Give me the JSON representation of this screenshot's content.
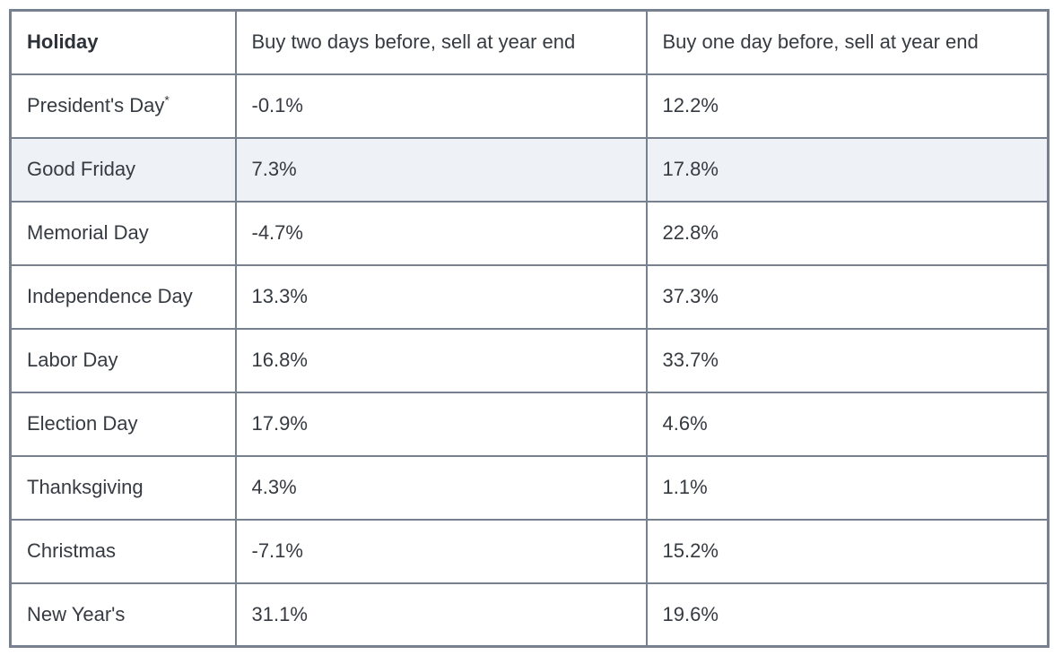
{
  "page": {
    "background": "#ffffff"
  },
  "colors": {
    "border": "#76808e",
    "highlight_row_background": "#eef2f6",
    "body_text": "#363a41",
    "header_text": "#2d3138"
  },
  "table": {
    "headers": {
      "holiday": "Holiday",
      "two_days": "Buy two days before, sell at year end",
      "one_day": "Buy one day before, sell at year end"
    },
    "rows": [
      {
        "holiday": "President's Day",
        "marker": "*",
        "two_days": "-0.1%",
        "one_day": "12.2%",
        "highlighted": false
      },
      {
        "holiday": "Good Friday",
        "marker": "",
        "two_days": "7.3%",
        "one_day": "17.8%",
        "highlighted": true
      },
      {
        "holiday": "Memorial Day",
        "marker": "",
        "two_days": "-4.7%",
        "one_day": "22.8%",
        "highlighted": false
      },
      {
        "holiday": "Independence Day",
        "marker": "",
        "two_days": "13.3%",
        "one_day": "37.3%",
        "highlighted": false
      },
      {
        "holiday": "Labor Day",
        "marker": "",
        "two_days": "16.8%",
        "one_day": "33.7%",
        "highlighted": false
      },
      {
        "holiday": "Election Day",
        "marker": "",
        "two_days": "17.9%",
        "one_day": "4.6%",
        "highlighted": false
      },
      {
        "holiday": "Thanksgiving",
        "marker": "",
        "two_days": "4.3%",
        "one_day": "1.1%",
        "highlighted": false
      },
      {
        "holiday": "Christmas",
        "marker": "",
        "two_days": "-7.1%",
        "one_day": "15.2%",
        "highlighted": false
      },
      {
        "holiday": "New Year's",
        "marker": "",
        "two_days": "31.1%",
        "one_day": "19.6%",
        "highlighted": false
      }
    ]
  },
  "chart_data": {
    "type": "table",
    "title": "",
    "columns": [
      "Holiday",
      "Buy two days before, sell at year end",
      "Buy one day before, sell at year end"
    ],
    "categories": [
      "President's Day*",
      "Good Friday",
      "Memorial Day",
      "Independence Day",
      "Labor Day",
      "Election Day",
      "Thanksgiving",
      "Christmas",
      "New Year's"
    ],
    "series": [
      {
        "name": "Buy two days before, sell at year end",
        "values_pct": [
          -0.1,
          7.3,
          -4.7,
          13.3,
          16.8,
          17.9,
          4.3,
          -7.1,
          31.1
        ]
      },
      {
        "name": "Buy one day before, sell at year end",
        "values_pct": [
          12.2,
          17.8,
          22.8,
          37.3,
          33.7,
          4.6,
          1.1,
          15.2,
          19.6
        ]
      }
    ],
    "highlighted_row": "Good Friday",
    "footnote_marker_on": "President's Day"
  }
}
